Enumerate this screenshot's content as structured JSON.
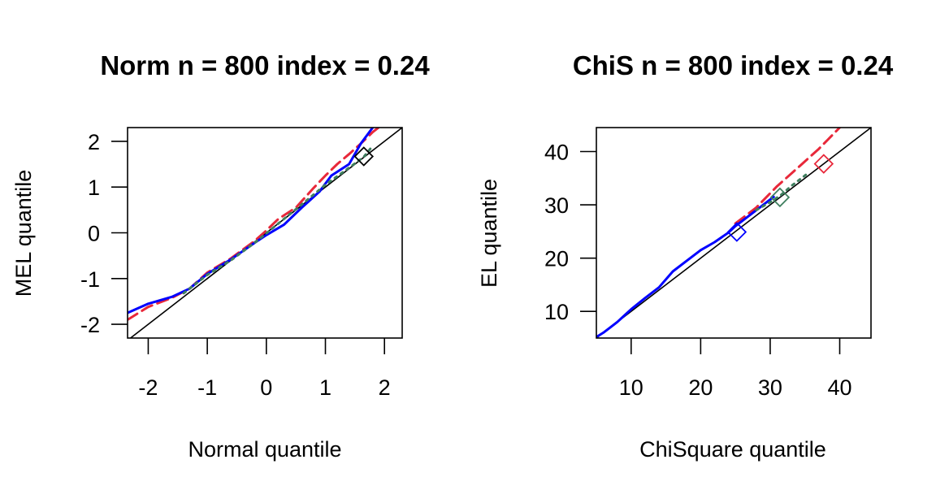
{
  "chart_data": [
    {
      "type": "line",
      "title": "Norm n = 800 index = 0.24",
      "xlabel": "Normal quantile",
      "ylabel": "MEL quantile",
      "xlim": [
        -2.35,
        2.3
      ],
      "ylim": [
        -2.3,
        2.3
      ],
      "xticks": [
        -2,
        -1,
        0,
        1,
        2
      ],
      "yticks": [
        -2,
        -1,
        0,
        1,
        2
      ],
      "xtick_labels": [
        "-2",
        "-1",
        "0",
        "1",
        "2"
      ],
      "ytick_labels": [
        "-2",
        "-1",
        "0",
        "1",
        "2"
      ],
      "grid": false,
      "reference_line": "y = x",
      "series": [
        {
          "color": "#e8283a",
          "style": "dashed",
          "x": [
            -2.35,
            -2.0,
            -1.6,
            -1.3,
            -1.0,
            -0.6,
            -0.2,
            0.0,
            0.2,
            0.5,
            0.8,
            1.0,
            1.2,
            1.4,
            1.6,
            1.8,
            2.1
          ],
          "y": [
            -1.9,
            -1.62,
            -1.42,
            -1.22,
            -0.87,
            -0.56,
            -0.18,
            0.05,
            0.3,
            0.55,
            0.98,
            1.25,
            1.5,
            1.72,
            1.95,
            2.2,
            2.5
          ]
        },
        {
          "color": "#0000ff",
          "style": "solid",
          "x": [
            -2.35,
            -2.0,
            -1.6,
            -1.3,
            -1.0,
            -0.6,
            -0.2,
            0.0,
            0.3,
            0.6,
            0.9,
            1.1,
            1.4,
            1.6,
            1.8
          ],
          "y": [
            -1.75,
            -1.55,
            -1.4,
            -1.22,
            -0.9,
            -0.58,
            -0.22,
            -0.05,
            0.18,
            0.55,
            0.9,
            1.25,
            1.5,
            1.95,
            2.3
          ]
        },
        {
          "color": "#3f7f5f",
          "style": "dotted",
          "x": [
            -1.4,
            -1.0,
            -0.6,
            -0.2,
            0.2,
            0.6,
            1.0,
            1.4,
            1.65,
            1.8
          ],
          "y": [
            -1.32,
            -0.92,
            -0.6,
            -0.22,
            0.2,
            0.62,
            1.05,
            1.42,
            1.66,
            1.9
          ]
        }
      ],
      "markers": [
        {
          "shape": "diamond",
          "color": "#000000",
          "x": 1.65,
          "y": 1.67
        }
      ]
    },
    {
      "type": "line",
      "title": "ChiS n = 800 index = 0.24",
      "xlabel": "ChiSquare quantile",
      "ylabel": "EL quantile",
      "xlim": [
        5,
        44.5
      ],
      "ylim": [
        5,
        44.5
      ],
      "xticks": [
        10,
        20,
        30,
        40
      ],
      "yticks": [
        10,
        20,
        30,
        40
      ],
      "xtick_labels": [
        "10",
        "20",
        "30",
        "40"
      ],
      "ytick_labels": [
        "10",
        "20",
        "30",
        "40"
      ],
      "grid": false,
      "reference_line": "y = x",
      "series": [
        {
          "color": "#e8283a",
          "style": "dashed",
          "x": [
            25,
            28,
            31,
            34,
            37,
            40
          ],
          "y": [
            26.5,
            29.5,
            33.5,
            37,
            40.5,
            44.5
          ]
        },
        {
          "color": "#0000ff",
          "style": "solid",
          "x": [
            5,
            6,
            7,
            8,
            9,
            10,
            12,
            14,
            16,
            18,
            20,
            22,
            24,
            25,
            27,
            29,
            30.5
          ],
          "y": [
            5.2,
            6,
            7,
            8,
            9.2,
            10.4,
            12.5,
            14.5,
            17.5,
            19.5,
            21.5,
            23,
            24.8,
            26,
            28,
            30,
            31.5
          ]
        },
        {
          "color": "#3f7f5f",
          "style": "dotted",
          "x": [
            28,
            30,
            31.5,
            33,
            35.5
          ],
          "y": [
            29,
            30.5,
            31.8,
            33.5,
            36
          ]
        }
      ],
      "markers": [
        {
          "shape": "diamond",
          "color": "#0000ff",
          "x": 25.2,
          "y": 24.9
        },
        {
          "shape": "diamond",
          "color": "#3f7f5f",
          "x": 31.4,
          "y": 31.4
        },
        {
          "shape": "diamond",
          "color": "#e8283a",
          "x": 37.7,
          "y": 37.7
        }
      ]
    }
  ]
}
